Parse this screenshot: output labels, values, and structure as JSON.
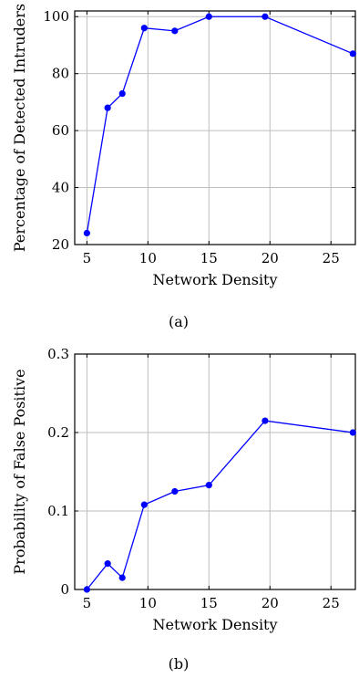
{
  "chart_data": [
    {
      "type": "line",
      "caption": "(a)",
      "xlabel": "Network Density",
      "ylabel": "Percentage of Detected Intruders",
      "xlim": [
        4,
        27
      ],
      "ylim": [
        20,
        102
      ],
      "xticks": [
        5,
        10,
        15,
        20,
        25
      ],
      "yticks": [
        20,
        40,
        60,
        80,
        100
      ],
      "grid": true,
      "color": "#0000ff",
      "x": [
        5,
        6.7,
        7.9,
        9.7,
        12.2,
        15,
        19.6,
        26.8
      ],
      "y": [
        24,
        68,
        73,
        96,
        95,
        100,
        100,
        87
      ]
    },
    {
      "type": "line",
      "caption": "(b)",
      "xlabel": "Network Density",
      "ylabel": "Probability of False Positive",
      "xlim": [
        4,
        27
      ],
      "ylim": [
        0,
        0.3
      ],
      "xticks": [
        5,
        10,
        15,
        20,
        25
      ],
      "yticks": [
        0,
        0.1,
        0.2,
        0.3
      ],
      "ytick_labels": [
        "0",
        "0.1",
        "0.2",
        "0.3"
      ],
      "grid": true,
      "color": "#0000ff",
      "x": [
        5,
        6.7,
        7.9,
        9.7,
        12.2,
        15,
        19.6,
        26.8
      ],
      "y": [
        0,
        0.033,
        0.015,
        0.108,
        0.125,
        0.133,
        0.215,
        0.2
      ]
    }
  ]
}
